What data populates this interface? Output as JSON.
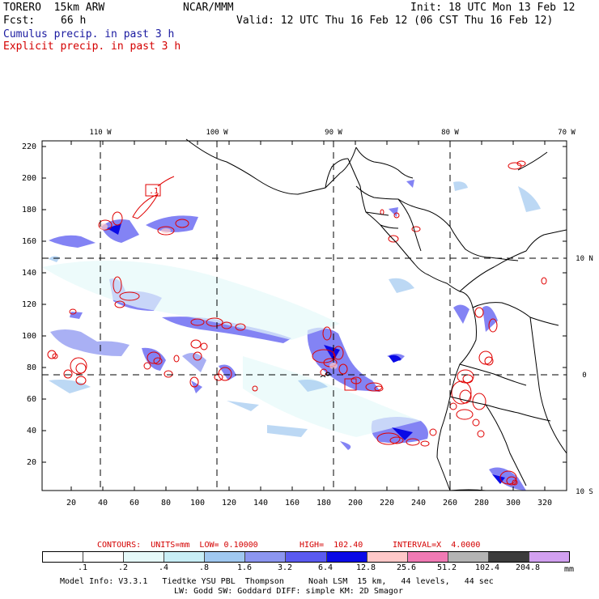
{
  "header": {
    "model": "TORERO  15km ARW",
    "org": "NCAR/MMM",
    "init": "Init: 18 UTC Mon 13 Feb 12",
    "fcst_label": "Fcst:",
    "fcst_value": "66 h",
    "valid": "Valid: 12 UTC Thu 16 Feb 12 (06 CST Thu 16 Feb 12)",
    "cumulus_label": "Cumulus precip. in past 3 h",
    "explicit_label": "Explicit precip. in past 3 h"
  },
  "map": {
    "lon_labels": [
      "110 W",
      "100 W",
      "90 W",
      "80 W",
      "70 W"
    ],
    "lat_labels": [
      "10 N",
      "0",
      "10 S"
    ],
    "y_ticks": [
      "220",
      "200",
      "180",
      "160",
      "140",
      "120",
      "100",
      "80",
      "60",
      "40",
      "20"
    ],
    "x_ticks": [
      "20",
      "40",
      "60",
      "80",
      "100",
      "120",
      "140",
      "160",
      "180",
      "200",
      "220",
      "240",
      "260",
      "280",
      "300",
      "320"
    ],
    "high_marker_label": ".1"
  },
  "contours": {
    "units": "CONTOURS:  UNITS=mm  LOW= 0.10000",
    "high": "HIGH=  102.40",
    "interval": "INTERVAL=X  4.0000"
  },
  "legend": {
    "labels": [
      ".1",
      ".2",
      ".4",
      ".8",
      "1.6",
      "3.2",
      "6.4",
      "12.8",
      "25.6",
      "51.2",
      "102.4",
      "204.8"
    ],
    "unit": "mm",
    "colors": [
      "#ffffff",
      "#ffffff",
      "#e6fafa",
      "#c8eef6",
      "#a0c8f0",
      "#8c96f0",
      "#5a5af0",
      "#0a0ae6",
      "#ffc8c8",
      "#f07ab4",
      "#b4b4b4",
      "#3c3c3c",
      "#d2a0f0"
    ]
  },
  "footer": {
    "line1": "Model Info: V3.3.1   Tiedtke YSU PBL  Thompson     Noah LSM  15 km,   44 levels,   44 sec",
    "line2": "LW: Godd SW: Goddard DIFF: simple KM: 2D Smagor"
  }
}
